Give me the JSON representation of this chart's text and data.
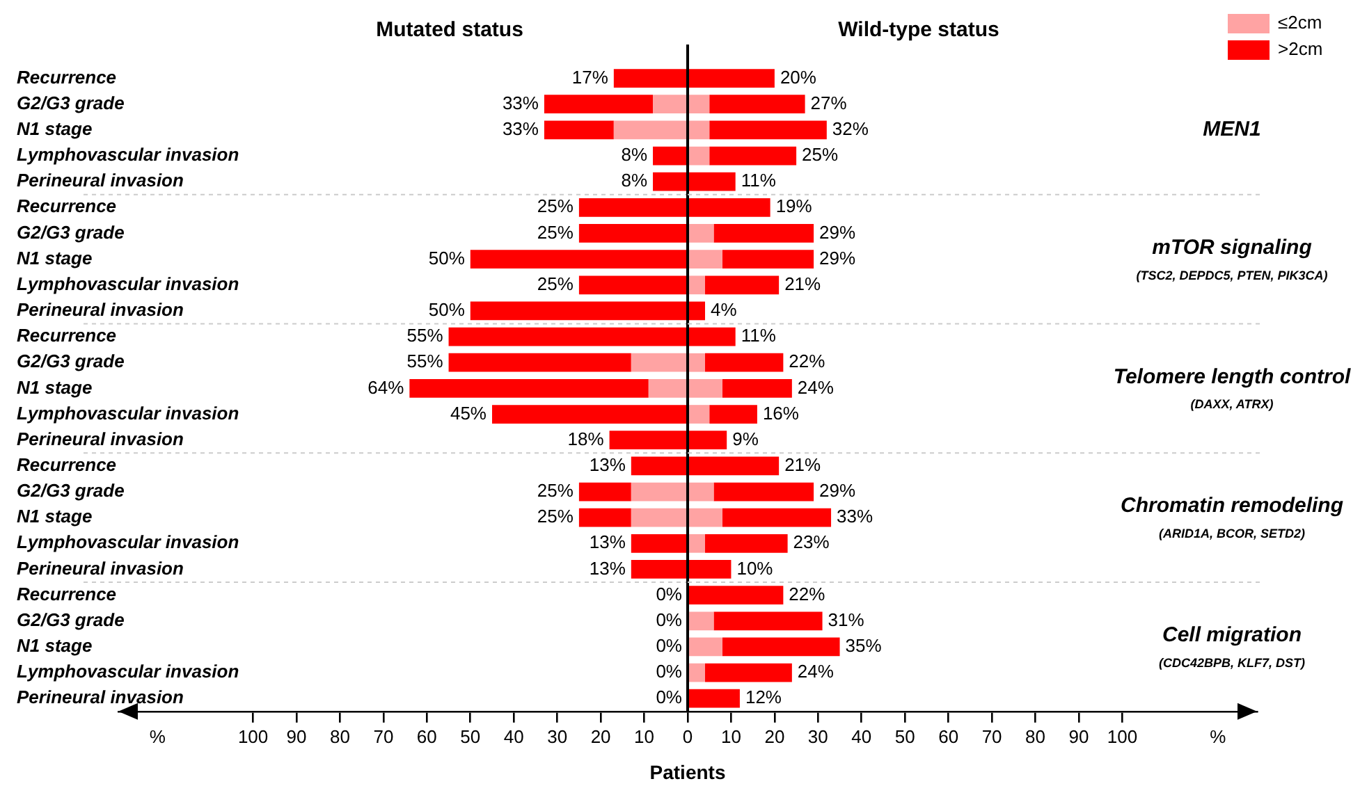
{
  "chart_data": [
    {
      "type": "bar",
      "orientation": "horizontal",
      "stacked": true,
      "title": "Mutated status",
      "grid": false,
      "categories": [
        "Recurrence",
        "G2/G3 grade",
        "N1 stage",
        "Lymphovascular invasion",
        "Perineural invasion",
        "Recurrence",
        "G2/G3 grade",
        "N1 stage",
        "Lymphovascular invasion",
        "Perineural invasion",
        "Recurrence",
        "G2/G3 grade",
        "N1 stage",
        "Lymphovascular invasion",
        "Perineural invasion",
        "Recurrence",
        "G2/G3 grade",
        "N1 stage",
        "Lymphovascular invasion",
        "Perineural invasion",
        "Recurrence",
        "G2/G3 grade",
        "N1 stage",
        "Lymphovascular invasion",
        "Perineural invasion"
      ],
      "xlim": [
        131,
        0
      ],
      "xticks": [
        {
          "value": 122,
          "label": "%"
        },
        100,
        90,
        80,
        70,
        60,
        50,
        40,
        30,
        20,
        10
      ],
      "series": [
        {
          "color": "#ffa3a3",
          "values": [
            0,
            8,
            17,
            0,
            0,
            0,
            0,
            0,
            0,
            0,
            0,
            13,
            9,
            0,
            0,
            0,
            13,
            13,
            0,
            0,
            0,
            0,
            0,
            0,
            0
          ]
        },
        {
          "color": "#ff0000",
          "values": [
            17,
            25,
            16,
            8,
            8,
            25,
            25,
            50,
            25,
            50,
            55,
            42,
            55,
            45,
            18,
            13,
            12,
            12,
            13,
            13,
            0,
            0,
            0,
            0,
            0
          ]
        }
      ],
      "totals": [
        "17%",
        "33%",
        "33%",
        "8%",
        "8%",
        "25%",
        "25%",
        "50%",
        "25%",
        "50%",
        "55%",
        "55%",
        "64%",
        "45%",
        "18%",
        "13%",
        "25%",
        "25%",
        "13%",
        "13%",
        "0%",
        "0%",
        "0%",
        "0%",
        "0%"
      ]
    },
    {
      "type": "bar",
      "orientation": "horizontal",
      "stacked": true,
      "title": "Wild-type status",
      "xlabel": "Patients",
      "legend": "top right",
      "grid": false,
      "tick_labels": "x",
      "annotations": [
        "MEN1",
        "mTOR signaling\n(TSC2, DEPDC5, PTEN, PIK3CA)",
        "Telomere length control\n(DAXX, ATRX)",
        "Chromatin remodeling\n(ARID1A, BCOR, SETD2)",
        "Cell migration\n(CDC42BPB, KLF7, DST)"
      ],
      "categories": [
        null,
        null,
        null,
        null,
        null,
        null,
        null,
        null,
        null,
        null,
        null,
        null,
        null,
        null,
        null,
        null,
        null,
        null,
        null,
        null,
        null,
        null,
        null,
        null,
        null
      ],
      "xlim": [
        0,
        131
      ],
      "xticks": [
        0,
        10,
        20,
        30,
        40,
        50,
        60,
        70,
        80,
        90,
        100,
        {
          "value": 122,
          "label": "%"
        }
      ],
      "series": [
        {
          "name": "≤2cm",
          "color": "#ffa3a3",
          "values": [
            0,
            5,
            5,
            5,
            0,
            0,
            6,
            8,
            4,
            0,
            0,
            4,
            8,
            5,
            0,
            0,
            6,
            8,
            4,
            0,
            0,
            6,
            8,
            4,
            0
          ]
        },
        {
          "name": ">2cm",
          "color": "#ff0000",
          "values": [
            20,
            22,
            27,
            20,
            11,
            19,
            23,
            21,
            17,
            4,
            11,
            18,
            16,
            11,
            9,
            21,
            23,
            25,
            19,
            10,
            22,
            25,
            27,
            20,
            12
          ]
        }
      ],
      "totals": [
        "20%",
        "27%",
        "32%",
        "25%",
        "11%",
        "19%",
        "29%",
        "29%",
        "21%",
        "4%",
        "11%",
        "22%",
        "24%",
        "16%",
        "9%",
        "21%",
        "29%",
        "33%",
        "23%",
        "10%",
        "22%",
        "31%",
        "35%",
        "24%",
        "12%"
      ]
    }
  ]
}
